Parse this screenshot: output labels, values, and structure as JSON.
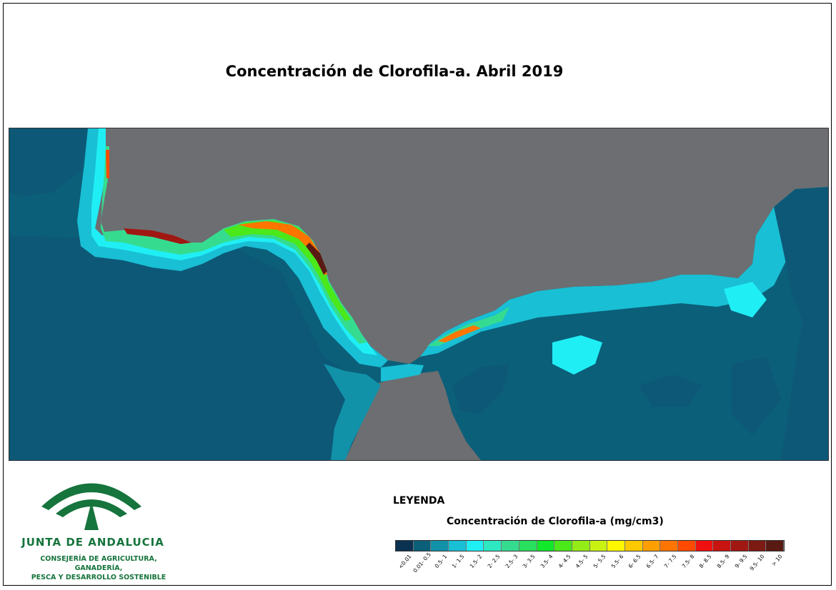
{
  "title": "Concentración de Clorofila-a. Abril 2019",
  "legend": {
    "heading": "LEYENDA",
    "subtitle": "Concentración de Clorofila-a (mg/cm3)",
    "classes": [
      {
        "label": "<0.01",
        "color": "#0b3150"
      },
      {
        "label": "0.01- 0.5",
        "color": "#0b5f79"
      },
      {
        "label": "0.5- 1",
        "color": "#1292a8"
      },
      {
        "label": "1- 1.5",
        "color": "#19bfd4"
      },
      {
        "label": "1.5- 2",
        "color": "#20eef5"
      },
      {
        "label": "2- 2.5",
        "color": "#2ee8c2"
      },
      {
        "label": "2.5- 3",
        "color": "#35dc90"
      },
      {
        "label": "3- 3.5",
        "color": "#28e05e"
      },
      {
        "label": "3.5- 4",
        "color": "#11e82a"
      },
      {
        "label": "4- 4.5",
        "color": "#4be81a"
      },
      {
        "label": "4.5- 5",
        "color": "#93ec17"
      },
      {
        "label": "5- 5.5",
        "color": "#c9f213"
      },
      {
        "label": "5.5- 6",
        "color": "#fff700"
      },
      {
        "label": "6- 6.5",
        "color": "#ffc900"
      },
      {
        "label": "6.5- 7",
        "color": "#ff9f00"
      },
      {
        "label": "7- 7.5",
        "color": "#ff7500"
      },
      {
        "label": "7.5- 8",
        "color": "#ff4a00"
      },
      {
        "label": "8- 8.5",
        "color": "#f01010"
      },
      {
        "label": "8.5- 9",
        "color": "#c81410"
      },
      {
        "label": "9- 9.5",
        "color": "#a01812"
      },
      {
        "label": "9.5- 10",
        "color": "#7c1a14"
      },
      {
        "label": "> 10",
        "color": "#5a1a14"
      }
    ]
  },
  "logo": {
    "name": "JUNTA DE ANDALUCIA",
    "line1": "CONSEJERÍA DE AGRICULTURA, GANADERÍA,",
    "line2": "PESCA Y DESARROLLO SOSTENIBLE",
    "color": "#16743d"
  },
  "map": {
    "land_color": "#6d6e71",
    "ocean_color": "#0b5f79"
  }
}
